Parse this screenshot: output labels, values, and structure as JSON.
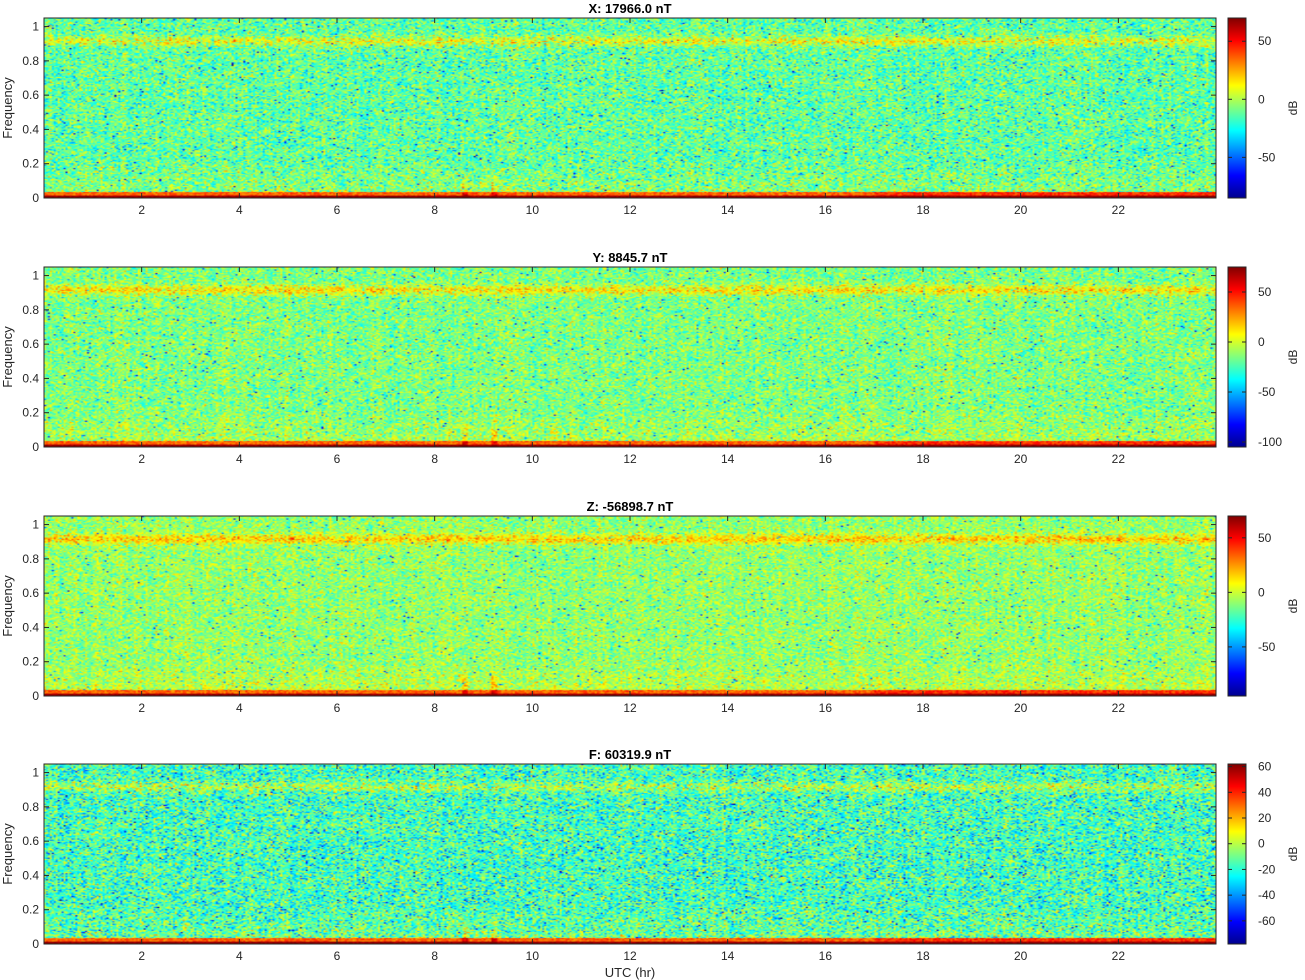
{
  "chart_data": [
    {
      "type": "heatmap",
      "title": "X: 17966.0 nT",
      "xlabel": "",
      "ylabel": "Frequency",
      "xlim": [
        0,
        24
      ],
      "ylim": [
        0,
        1.05
      ],
      "x_ticks": [
        2,
        4,
        6,
        8,
        10,
        12,
        14,
        16,
        18,
        20,
        22
      ],
      "y_ticks": [
        0,
        0.2,
        0.4,
        0.6,
        0.8,
        1
      ],
      "y_tick_labels": [
        "0",
        "0.2",
        "0.4",
        "0.6",
        "0.8",
        "1"
      ],
      "colorbar": {
        "label": "dB",
        "range": [
          -85,
          70
        ],
        "ticks": [
          50,
          0,
          -50
        ]
      },
      "colormap": "jet"
    },
    {
      "type": "heatmap",
      "title": "Y: 8845.7 nT",
      "xlabel": "",
      "ylabel": "Frequency",
      "xlim": [
        0,
        24
      ],
      "ylim": [
        0,
        1.05
      ],
      "x_ticks": [
        2,
        4,
        6,
        8,
        10,
        12,
        14,
        16,
        18,
        20,
        22
      ],
      "y_ticks": [
        0,
        0.2,
        0.4,
        0.6,
        0.8,
        1
      ],
      "y_tick_labels": [
        "0",
        "0.2",
        "0.4",
        "0.6",
        "0.8",
        "1"
      ],
      "colorbar": {
        "label": "dB",
        "range": [
          -105,
          75
        ],
        "ticks": [
          50,
          0,
          -50,
          -100
        ]
      },
      "colormap": "jet"
    },
    {
      "type": "heatmap",
      "title": "Z: -56898.7 nT",
      "xlabel": "",
      "ylabel": "Frequency",
      "xlim": [
        0,
        24
      ],
      "ylim": [
        0,
        1.05
      ],
      "x_ticks": [
        2,
        4,
        6,
        8,
        10,
        12,
        14,
        16,
        18,
        20,
        22
      ],
      "y_ticks": [
        0,
        0.2,
        0.4,
        0.6,
        0.8,
        1
      ],
      "y_tick_labels": [
        "0",
        "0.2",
        "0.4",
        "0.6",
        "0.8",
        "1"
      ],
      "colorbar": {
        "label": "dB",
        "range": [
          -95,
          70
        ],
        "ticks": [
          50,
          0,
          -50
        ]
      },
      "colormap": "jet"
    },
    {
      "type": "heatmap",
      "title": "F: 60319.9 nT",
      "xlabel": "UTC (hr)",
      "ylabel": "Frequency",
      "xlim": [
        0,
        24
      ],
      "ylim": [
        0,
        1.05
      ],
      "x_ticks": [
        2,
        4,
        6,
        8,
        10,
        12,
        14,
        16,
        18,
        20,
        22
      ],
      "y_ticks": [
        0,
        0.2,
        0.4,
        0.6,
        0.8,
        1
      ],
      "y_tick_labels": [
        "0",
        "0.2",
        "0.4",
        "0.6",
        "0.8",
        "1"
      ],
      "colorbar": {
        "label": "dB",
        "range": [
          -78,
          62
        ],
        "ticks": [
          60,
          40,
          20,
          0,
          -20,
          -40,
          -60
        ]
      },
      "colormap": "jet"
    }
  ]
}
